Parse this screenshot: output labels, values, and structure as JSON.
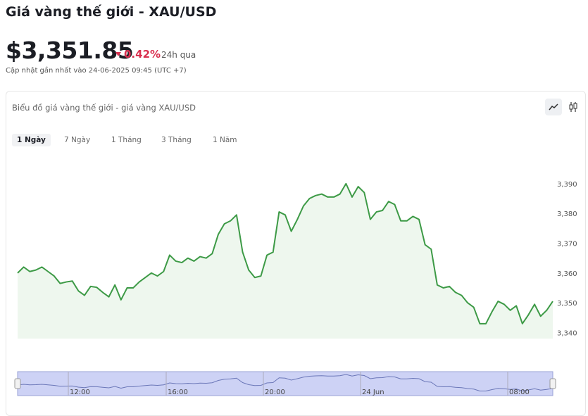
{
  "header": {
    "title": "Giá vàng thế giới - XAU/USD",
    "price": "$3,351.85",
    "change": "0.42%",
    "change_period": "24h qua",
    "updated": "Cập nhật gần nhất vào 24-06-2025 09:45 (UTC +7)"
  },
  "tabs": [
    "1 Ngày",
    "7 Ngày",
    "1 Tháng",
    "3 Tháng",
    "1 Năm"
  ],
  "chart_data": {
    "type": "line",
    "title": "Biểu đồ giá vàng thế giới - giá vàng XAU/USD",
    "color": "#3d9a46",
    "values": [
      3360,
      3362,
      3360.5,
      3361,
      3362,
      3360.5,
      3359,
      3356.5,
      3357,
      3357.3,
      3354,
      3352.5,
      3355.5,
      3355.2,
      3353.5,
      3352,
      3356,
      3351,
      3355,
      3355,
      3357,
      3358.5,
      3360,
      3359,
      3360.5,
      3366,
      3364,
      3363.5,
      3365,
      3364,
      3365.5,
      3365,
      3366.5,
      3373,
      3376.5,
      3377.5,
      3379.5,
      3367,
      3361,
      3358.5,
      3359,
      3366,
      3367,
      3380.5,
      3379.5,
      3374,
      3378,
      3382.5,
      3385,
      3386,
      3386.5,
      3385.5,
      3385.5,
      3386.5,
      3390,
      3385.5,
      3389,
      3387,
      3378,
      3380.5,
      3381,
      3384,
      3383,
      3377.5,
      3377.5,
      3379,
      3378,
      3369.5,
      3368,
      3356,
      3355,
      3355.5,
      3353.5,
      3352.5,
      3350,
      3348.5,
      3343,
      3343,
      3347,
      3350.5,
      3349.5,
      3347.5,
      3349,
      3343,
      3346,
      3349.5,
      3345.5,
      3347.5,
      3350.5
    ],
    "ylim": [
      3338,
      3398
    ],
    "yticks": [
      {
        "value": 3340,
        "label": "3,340"
      },
      {
        "value": 3350,
        "label": "3,350"
      },
      {
        "value": 3360,
        "label": "3,360"
      },
      {
        "value": 3370,
        "label": "3,370"
      },
      {
        "value": 3380,
        "label": "3,380"
      },
      {
        "value": 3390,
        "label": "3,390"
      }
    ],
    "navigator_labels": [
      "12:00",
      "16:00",
      "20:00",
      "24 Jun",
      "08:00"
    ]
  }
}
